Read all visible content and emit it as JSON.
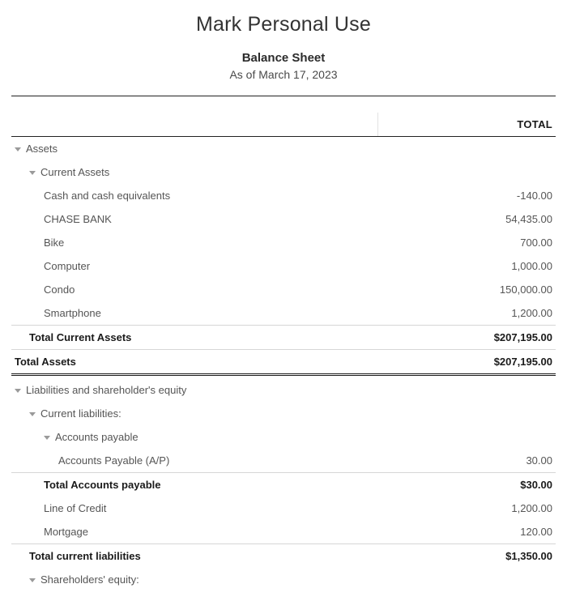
{
  "report": {
    "title": "Mark Personal Use",
    "subtitle": "Balance Sheet",
    "date": "As of March 17, 2023",
    "total_column_header": "TOTAL"
  },
  "rows": [
    {
      "label": "Assets",
      "amount": "",
      "indent": 0,
      "caret": true,
      "total": false,
      "thick": false,
      "gap": false
    },
    {
      "label": "Current Assets",
      "amount": "",
      "indent": 1,
      "caret": true,
      "total": false,
      "thick": false,
      "gap": false
    },
    {
      "label": "Cash and cash equivalents",
      "amount": "-140.00",
      "indent": 2,
      "caret": false,
      "total": false,
      "thick": false,
      "gap": false
    },
    {
      "label": "CHASE BANK",
      "amount": "54,435.00",
      "indent": 2,
      "caret": false,
      "total": false,
      "thick": false,
      "gap": false
    },
    {
      "label": "Bike",
      "amount": "700.00",
      "indent": 2,
      "caret": false,
      "total": false,
      "thick": false,
      "gap": false
    },
    {
      "label": "Computer",
      "amount": "1,000.00",
      "indent": 2,
      "caret": false,
      "total": false,
      "thick": false,
      "gap": false
    },
    {
      "label": "Condo",
      "amount": "150,000.00",
      "indent": 2,
      "caret": false,
      "total": false,
      "thick": false,
      "gap": false
    },
    {
      "label": "Smartphone",
      "amount": "1,200.00",
      "indent": 2,
      "caret": false,
      "total": false,
      "thick": false,
      "gap": false
    },
    {
      "label": "Total Current Assets",
      "amount": "$207,195.00",
      "indent": 1,
      "caret": false,
      "total": true,
      "thick": false,
      "gap": false
    },
    {
      "label": "Total Assets",
      "amount": "$207,195.00",
      "indent": 0,
      "caret": false,
      "total": true,
      "thick": true,
      "gap": false
    },
    {
      "label": "Liabilities and shareholder's equity",
      "amount": "",
      "indent": 0,
      "caret": true,
      "total": false,
      "thick": false,
      "gap": true
    },
    {
      "label": "Current liabilities:",
      "amount": "",
      "indent": 1,
      "caret": true,
      "total": false,
      "thick": false,
      "gap": false
    },
    {
      "label": "Accounts payable",
      "amount": "",
      "indent": 2,
      "caret": true,
      "total": false,
      "thick": false,
      "gap": false
    },
    {
      "label": "Accounts Payable (A/P)",
      "amount": "30.00",
      "indent": 3,
      "caret": false,
      "total": false,
      "thick": false,
      "gap": false
    },
    {
      "label": "Total Accounts payable",
      "amount": "$30.00",
      "indent": 2,
      "caret": false,
      "total": true,
      "thick": false,
      "gap": false
    },
    {
      "label": "Line of Credit",
      "amount": "1,200.00",
      "indent": 2,
      "caret": false,
      "total": false,
      "thick": false,
      "gap": false
    },
    {
      "label": "Mortgage",
      "amount": "120.00",
      "indent": 2,
      "caret": false,
      "total": false,
      "thick": false,
      "gap": false
    },
    {
      "label": "Total current liabilities",
      "amount": "$1,350.00",
      "indent": 1,
      "caret": false,
      "total": true,
      "thick": false,
      "gap": false
    },
    {
      "label": "Shareholders' equity:",
      "amount": "",
      "indent": 1,
      "caret": true,
      "total": false,
      "thick": false,
      "gap": false
    }
  ]
}
